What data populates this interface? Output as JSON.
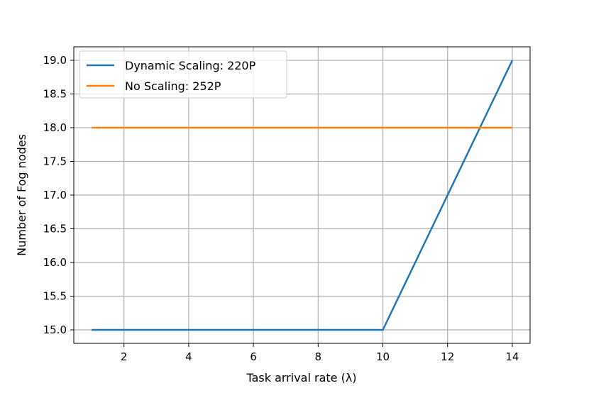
{
  "chart_data": {
    "type": "line",
    "xlabel": "Task arrival rate (λ)",
    "ylabel": "Number of Fog nodes",
    "xlim": [
      0.45,
      14.55
    ],
    "ylim": [
      14.8,
      19.2
    ],
    "xticks": [
      2,
      4,
      6,
      8,
      10,
      12,
      14
    ],
    "yticks": [
      15.0,
      15.5,
      16.0,
      16.5,
      17.0,
      17.5,
      18.0,
      18.5,
      19.0
    ],
    "xtick_labels": [
      "2",
      "4",
      "6",
      "8",
      "10",
      "12",
      "14"
    ],
    "ytick_labels": [
      "15.0",
      "15.5",
      "16.0",
      "16.5",
      "17.0",
      "17.5",
      "18.0",
      "18.5",
      "19.0"
    ],
    "grid": true,
    "legend_position": "top-left",
    "series": [
      {
        "name": "Dynamic Scaling: 220P",
        "color": "#1f77b4",
        "x": [
          1,
          2,
          3,
          4,
          5,
          6,
          7,
          8,
          9,
          10,
          11,
          12,
          13,
          14
        ],
        "y": [
          15,
          15,
          15,
          15,
          15,
          15,
          15,
          15,
          15,
          15,
          16,
          17,
          18,
          19
        ]
      },
      {
        "name": "No Scaling: 252P",
        "color": "#ff7f0e",
        "x": [
          1,
          2,
          3,
          4,
          5,
          6,
          7,
          8,
          9,
          10,
          11,
          12,
          13,
          14
        ],
        "y": [
          18,
          18,
          18,
          18,
          18,
          18,
          18,
          18,
          18,
          18,
          18,
          18,
          18,
          18
        ]
      }
    ]
  }
}
